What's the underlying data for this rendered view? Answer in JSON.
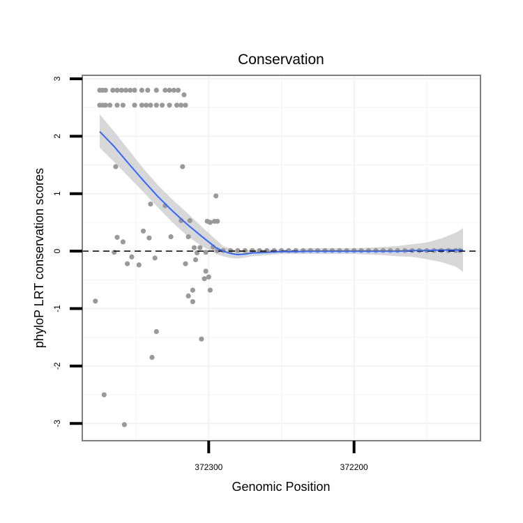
{
  "chart_data": {
    "type": "scatter",
    "title": "Conservation",
    "xlabel": "Genomic Position",
    "ylabel": "phyloP LRT conservation scores",
    "x_reversed": true,
    "xlim": [
      372387,
      372113
    ],
    "ylim": [
      -3.3,
      3.06
    ],
    "grid": true,
    "x_ticks": [
      {
        "value": 372300,
        "label": "372300"
      },
      {
        "value": 372200,
        "label": "372200"
      }
    ],
    "y_ticks": [
      {
        "value": 3,
        "label": "3"
      },
      {
        "value": 2,
        "label": "2"
      },
      {
        "value": 1,
        "label": "1"
      },
      {
        "value": 0,
        "label": "0"
      },
      {
        "value": -1,
        "label": "-1"
      },
      {
        "value": -2,
        "label": "-2"
      },
      {
        "value": -3,
        "label": "-3"
      }
    ],
    "reference_line": {
      "y": 0,
      "style": "dashed",
      "color": "#000000"
    },
    "colors": {
      "points": "#999999",
      "smooth": "#3366ff",
      "ribbon": "#d3d3d3",
      "panel_border": "#7f7f7f",
      "grid": "#f2f2f2"
    },
    "points": [
      {
        "x": 372375,
        "y": 2.8
      },
      {
        "x": 372373,
        "y": 2.8
      },
      {
        "x": 372371,
        "y": 2.8
      },
      {
        "x": 372366,
        "y": 2.8
      },
      {
        "x": 372363,
        "y": 2.8
      },
      {
        "x": 372360,
        "y": 2.8
      },
      {
        "x": 372357,
        "y": 2.8
      },
      {
        "x": 372354,
        "y": 2.8
      },
      {
        "x": 372351,
        "y": 2.8
      },
      {
        "x": 372346,
        "y": 2.8
      },
      {
        "x": 372342,
        "y": 2.8
      },
      {
        "x": 372336,
        "y": 2.8
      },
      {
        "x": 372330,
        "y": 2.8
      },
      {
        "x": 372327,
        "y": 2.8
      },
      {
        "x": 372324,
        "y": 2.8
      },
      {
        "x": 372321,
        "y": 2.8
      },
      {
        "x": 372317,
        "y": 2.72
      },
      {
        "x": 372375,
        "y": 2.54
      },
      {
        "x": 372373,
        "y": 2.54
      },
      {
        "x": 372371,
        "y": 2.54
      },
      {
        "x": 372368,
        "y": 2.54
      },
      {
        "x": 372363,
        "y": 2.54
      },
      {
        "x": 372359,
        "y": 2.54
      },
      {
        "x": 372351,
        "y": 2.54
      },
      {
        "x": 372346,
        "y": 2.54
      },
      {
        "x": 372343,
        "y": 2.54
      },
      {
        "x": 372340,
        "y": 2.54
      },
      {
        "x": 372336,
        "y": 2.54
      },
      {
        "x": 372332,
        "y": 2.54
      },
      {
        "x": 372327,
        "y": 2.54
      },
      {
        "x": 372322,
        "y": 2.54
      },
      {
        "x": 372319,
        "y": 2.54
      },
      {
        "x": 372316,
        "y": 2.54
      },
      {
        "x": 372364,
        "y": 1.47
      },
      {
        "x": 372318,
        "y": 1.47
      },
      {
        "x": 372295,
        "y": 0.96
      },
      {
        "x": 372340,
        "y": 0.82
      },
      {
        "x": 372330,
        "y": 0.79
      },
      {
        "x": 372319,
        "y": 0.53
      },
      {
        "x": 372313,
        "y": 0.53
      },
      {
        "x": 372301,
        "y": 0.52
      },
      {
        "x": 372299,
        "y": 0.5
      },
      {
        "x": 372296,
        "y": 0.52
      },
      {
        "x": 372294,
        "y": 0.52
      },
      {
        "x": 372345,
        "y": 0.35
      },
      {
        "x": 372326,
        "y": 0.25
      },
      {
        "x": 372314,
        "y": 0.25
      },
      {
        "x": 372363,
        "y": 0.24
      },
      {
        "x": 372341,
        "y": 0.23
      },
      {
        "x": 372359,
        "y": 0.16
      },
      {
        "x": 372310,
        "y": 0.06
      },
      {
        "x": 372306,
        "y": 0.06
      },
      {
        "x": 372297,
        "y": 0.07
      },
      {
        "x": 372365,
        "y": -0.02
      },
      {
        "x": 372308,
        "y": -0.03
      },
      {
        "x": 372302,
        "y": -0.02
      },
      {
        "x": 372353,
        "y": -0.1
      },
      {
        "x": 372337,
        "y": -0.12
      },
      {
        "x": 372309,
        "y": -0.15
      },
      {
        "x": 372356,
        "y": -0.22
      },
      {
        "x": 372348,
        "y": -0.24
      },
      {
        "x": 372316,
        "y": -0.22
      },
      {
        "x": 372302,
        "y": -0.35
      },
      {
        "x": 372300,
        "y": -0.45
      },
      {
        "x": 372303,
        "y": -0.48
      },
      {
        "x": 372299,
        "y": -0.68
      },
      {
        "x": 372311,
        "y": -0.68
      },
      {
        "x": 372314,
        "y": -0.78
      },
      {
        "x": 372311,
        "y": -0.88
      },
      {
        "x": 372378,
        "y": -0.87
      },
      {
        "x": 372336,
        "y": -1.4
      },
      {
        "x": 372305,
        "y": -1.53
      },
      {
        "x": 372339,
        "y": -1.85
      },
      {
        "x": 372372,
        "y": -2.5
      },
      {
        "x": 372358,
        "y": -3.02
      },
      {
        "x": 372294,
        "y": 0.01
      },
      {
        "x": 372290,
        "y": 0.01
      },
      {
        "x": 372285,
        "y": 0.01
      },
      {
        "x": 372280,
        "y": 0.01
      },
      {
        "x": 372275,
        "y": 0.01
      },
      {
        "x": 372270,
        "y": 0.01
      },
      {
        "x": 372265,
        "y": 0.01
      },
      {
        "x": 372260,
        "y": 0.01
      },
      {
        "x": 372255,
        "y": 0.01
      },
      {
        "x": 372250,
        "y": 0.01
      },
      {
        "x": 372245,
        "y": 0.01
      },
      {
        "x": 372240,
        "y": 0.01
      },
      {
        "x": 372235,
        "y": 0.01
      },
      {
        "x": 372230,
        "y": 0.01
      },
      {
        "x": 372225,
        "y": 0.01
      },
      {
        "x": 372220,
        "y": 0.01
      },
      {
        "x": 372215,
        "y": 0.01
      },
      {
        "x": 372210,
        "y": 0.01
      },
      {
        "x": 372205,
        "y": 0.01
      },
      {
        "x": 372200,
        "y": 0.01
      },
      {
        "x": 372195,
        "y": 0.01
      },
      {
        "x": 372190,
        "y": 0.01
      },
      {
        "x": 372185,
        "y": 0.01
      },
      {
        "x": 372180,
        "y": 0.01
      },
      {
        "x": 372175,
        "y": 0.01
      },
      {
        "x": 372170,
        "y": 0.01
      },
      {
        "x": 372165,
        "y": 0.01
      },
      {
        "x": 372160,
        "y": 0.01
      },
      {
        "x": 372155,
        "y": 0.01
      },
      {
        "x": 372150,
        "y": 0.01
      },
      {
        "x": 372145,
        "y": 0.01
      },
      {
        "x": 372140,
        "y": 0.01
      },
      {
        "x": 372135,
        "y": 0.01
      },
      {
        "x": 372130,
        "y": 0.01
      },
      {
        "x": 372127,
        "y": 0.01
      }
    ],
    "smooth": [
      {
        "x": 372375,
        "y": 2.08,
        "lo": 1.8,
        "hi": 2.38
      },
      {
        "x": 372365,
        "y": 1.82,
        "lo": 1.55,
        "hi": 2.08
      },
      {
        "x": 372355,
        "y": 1.52,
        "lo": 1.29,
        "hi": 1.76
      },
      {
        "x": 372345,
        "y": 1.23,
        "lo": 1.03,
        "hi": 1.44
      },
      {
        "x": 372335,
        "y": 0.95,
        "lo": 0.76,
        "hi": 1.15
      },
      {
        "x": 372325,
        "y": 0.7,
        "lo": 0.5,
        "hi": 0.9
      },
      {
        "x": 372315,
        "y": 0.47,
        "lo": 0.27,
        "hi": 0.67
      },
      {
        "x": 372305,
        "y": 0.26,
        "lo": 0.09,
        "hi": 0.43
      },
      {
        "x": 372295,
        "y": 0.06,
        "lo": -0.05,
        "hi": 0.2
      },
      {
        "x": 372290,
        "y": 0.0,
        "lo": -0.09,
        "hi": 0.09
      },
      {
        "x": 372285,
        "y": -0.04,
        "lo": -0.12,
        "hi": 0.04
      },
      {
        "x": 372280,
        "y": -0.06,
        "lo": -0.13,
        "hi": 0.01
      },
      {
        "x": 372275,
        "y": -0.05,
        "lo": -0.11,
        "hi": 0.01
      },
      {
        "x": 372270,
        "y": -0.03,
        "lo": -0.09,
        "hi": 0.03
      },
      {
        "x": 372260,
        "y": -0.02,
        "lo": -0.07,
        "hi": 0.03
      },
      {
        "x": 372250,
        "y": -0.01,
        "lo": -0.05,
        "hi": 0.03
      },
      {
        "x": 372240,
        "y": -0.01,
        "lo": -0.05,
        "hi": 0.03
      },
      {
        "x": 372230,
        "y": 0.0,
        "lo": -0.05,
        "hi": 0.05
      },
      {
        "x": 372220,
        "y": 0.0,
        "lo": -0.05,
        "hi": 0.05
      },
      {
        "x": 372210,
        "y": 0.0,
        "lo": -0.05,
        "hi": 0.05
      },
      {
        "x": 372200,
        "y": 0.0,
        "lo": -0.05,
        "hi": 0.05
      },
      {
        "x": 372190,
        "y": 0.0,
        "lo": -0.06,
        "hi": 0.06
      },
      {
        "x": 372180,
        "y": 0.0,
        "lo": -0.07,
        "hi": 0.07
      },
      {
        "x": 372170,
        "y": 0.0,
        "lo": -0.09,
        "hi": 0.09
      },
      {
        "x": 372160,
        "y": 0.01,
        "lo": -0.1,
        "hi": 0.12
      },
      {
        "x": 372150,
        "y": 0.01,
        "lo": -0.14,
        "hi": 0.15
      },
      {
        "x": 372140,
        "y": 0.02,
        "lo": -0.19,
        "hi": 0.22
      },
      {
        "x": 372130,
        "y": 0.02,
        "lo": -0.27,
        "hi": 0.32
      },
      {
        "x": 372125,
        "y": 0.02,
        "lo": -0.36,
        "hi": 0.4
      }
    ]
  }
}
